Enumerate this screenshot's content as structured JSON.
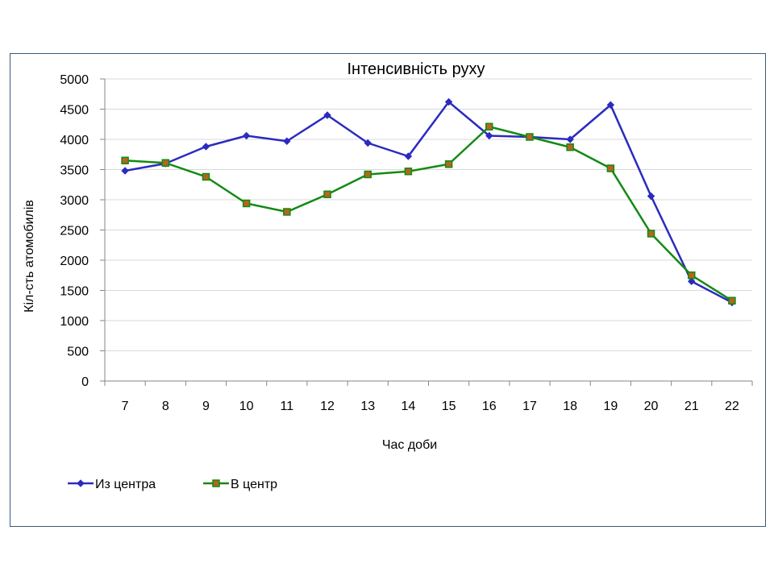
{
  "chart_data": {
    "type": "line",
    "title": "Інтенсивність руху",
    "xlabel": "Час доби",
    "ylabel": "Кіл-сть атомобилів",
    "categories": [
      "7",
      "8",
      "9",
      "10",
      "11",
      "12",
      "13",
      "14",
      "15",
      "16",
      "17",
      "18",
      "19",
      "20",
      "21",
      "22"
    ],
    "ylim": [
      0,
      5000
    ],
    "yticks": [
      "0",
      "500",
      "1000",
      "1500",
      "2000",
      "2500",
      "3000",
      "3500",
      "4000",
      "4500",
      "5000"
    ],
    "grid": true,
    "legend_position": "bottom-left",
    "series": [
      {
        "name": "Из центра",
        "color": "#2b2bbf",
        "marker": "diamond",
        "values": [
          3480,
          3600,
          3880,
          4060,
          3970,
          4400,
          3940,
          3720,
          4620,
          4060,
          4040,
          4000,
          4570,
          3060,
          1650,
          1300
        ]
      },
      {
        "name": "В центр",
        "color": "#138a13",
        "marker": "square",
        "marker_fill": "#b5651d",
        "values": [
          3650,
          3610,
          3380,
          2940,
          2800,
          3090,
          3420,
          3470,
          3590,
          4210,
          4040,
          3870,
          3520,
          2440,
          1750,
          1330
        ]
      }
    ]
  }
}
